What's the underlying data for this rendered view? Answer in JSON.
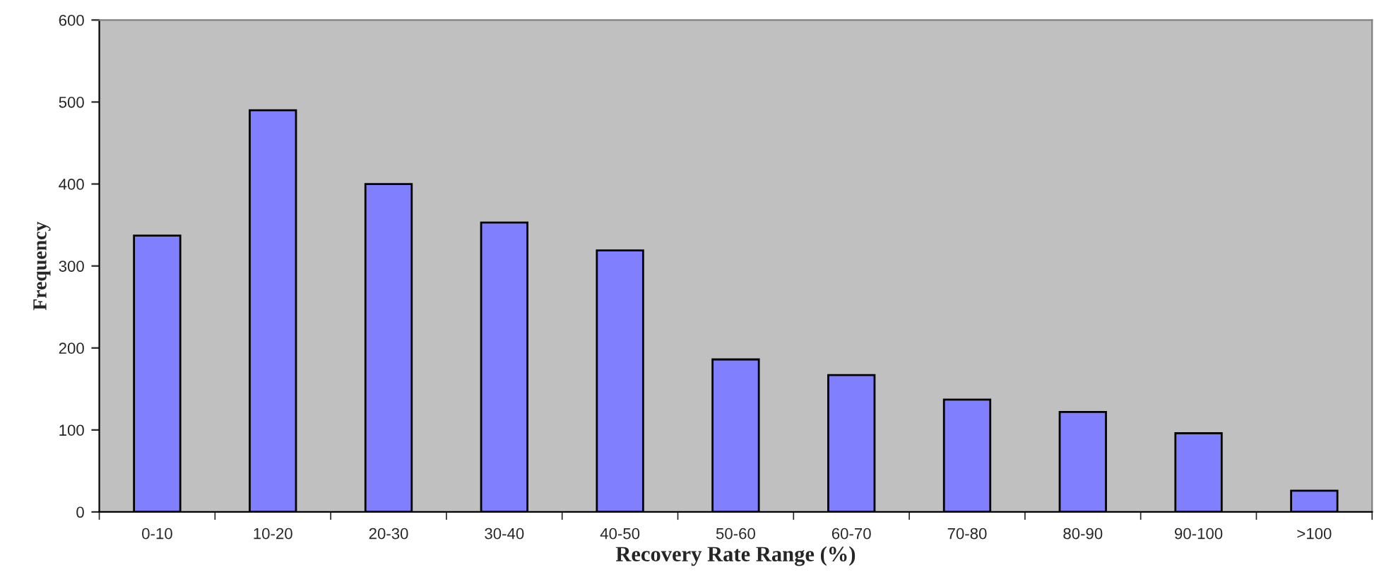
{
  "chart_data": {
    "type": "bar",
    "xlabel": "Recovery Rate Range (%)",
    "ylabel": "Frequency",
    "categories": [
      "0-10",
      "10-20",
      "20-30",
      "30-40",
      "40-50",
      "50-60",
      "60-70",
      "70-80",
      "80-90",
      "90-100",
      ">100"
    ],
    "values": [
      337,
      490,
      400,
      353,
      319,
      186,
      167,
      137,
      122,
      96,
      26
    ],
    "color": "#8080ff",
    "ylim": [
      0,
      600
    ],
    "yticks": [
      0,
      100,
      200,
      300,
      400,
      500,
      600
    ],
    "grid": false,
    "legend": false
  }
}
